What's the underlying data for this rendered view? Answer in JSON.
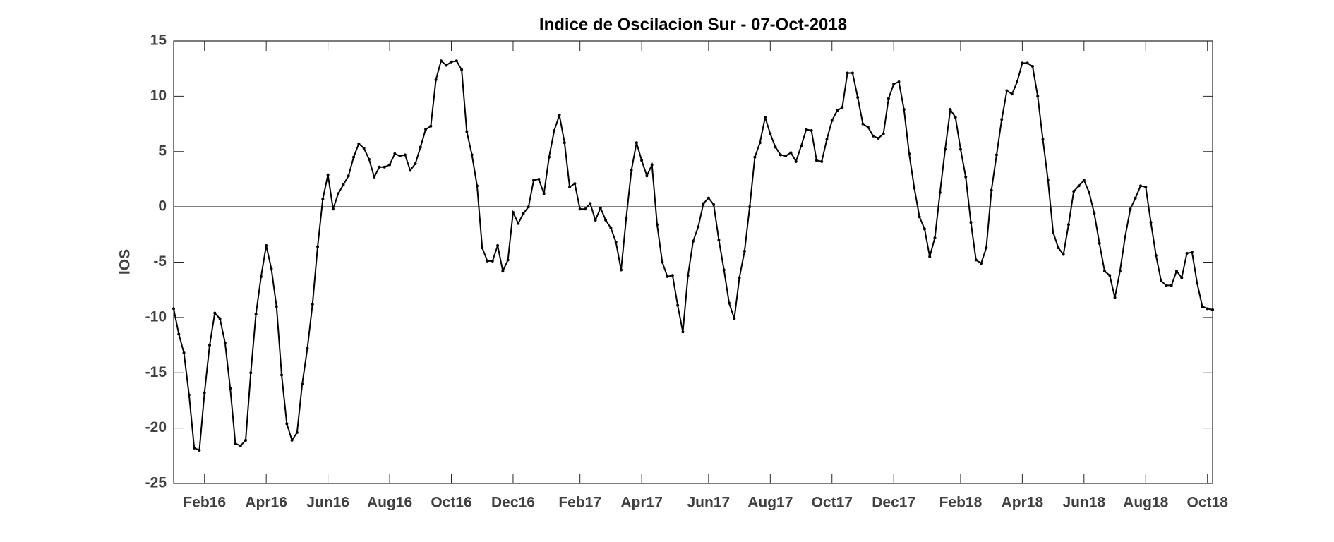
{
  "chart_data": {
    "type": "line",
    "title": "Indice de Oscilacion Sur - 07-Oct-2018",
    "ylabel": "IOS",
    "categories": [
      null,
      null,
      null,
      null,
      null,
      null,
      "Feb16",
      null,
      null,
      null,
      null,
      null,
      null,
      null,
      null,
      null,
      null,
      null,
      "Apr16",
      null,
      null,
      null,
      null,
      null,
      null,
      null,
      null,
      null,
      null,
      null,
      "Jun16",
      null,
      null,
      null,
      null,
      null,
      null,
      null,
      null,
      null,
      null,
      null,
      "Aug16",
      null,
      null,
      null,
      null,
      null,
      null,
      null,
      null,
      null,
      null,
      null,
      "Oct16",
      null,
      null,
      null,
      null,
      null,
      null,
      null,
      null,
      null,
      null,
      null,
      "Dec16",
      null,
      null,
      null,
      null,
      null,
      null,
      null,
      null,
      null,
      null,
      null,
      null,
      "Feb17",
      null,
      null,
      null,
      null,
      null,
      null,
      null,
      null,
      null,
      null,
      null,
      "Apr17",
      null,
      null,
      null,
      null,
      null,
      null,
      null,
      null,
      null,
      null,
      null,
      null,
      "Jun17",
      null,
      null,
      null,
      null,
      null,
      null,
      null,
      null,
      null,
      null,
      null,
      "Aug17",
      null,
      null,
      null,
      null,
      null,
      null,
      null,
      null,
      null,
      null,
      null,
      "Oct17",
      null,
      null,
      null,
      null,
      null,
      null,
      null,
      null,
      null,
      null,
      null,
      "Dec17",
      null,
      null,
      null,
      null,
      null,
      null,
      null,
      null,
      null,
      null,
      null,
      null,
      "Feb18",
      null,
      null,
      null,
      null,
      null,
      null,
      null,
      null,
      null,
      null,
      null,
      "Apr18",
      null,
      null,
      null,
      null,
      null,
      null,
      null,
      null,
      null,
      null,
      null,
      "Jun18",
      null,
      null,
      null,
      null,
      null,
      null,
      null,
      null,
      null,
      null,
      null,
      "Aug18",
      null,
      null,
      null,
      null,
      null,
      null,
      null,
      null,
      null,
      null,
      null,
      "Oct18",
      null
    ],
    "series": [
      {
        "name": "IOS",
        "color": "#000000",
        "values": [
          -9.2,
          -11.5,
          -13.2,
          -17,
          -21.8,
          -22,
          -16.8,
          -12.5,
          -9.6,
          -10.1,
          -12.3,
          -16.4,
          -21.4,
          -21.6,
          -21.1,
          -15,
          -9.7,
          -6.3,
          -3.5,
          -5.6,
          -9,
          -15.2,
          -19.6,
          -21.1,
          -20.4,
          -16,
          -12.8,
          -8.8,
          -3.6,
          0.7,
          2.9,
          -0.2,
          1.2,
          2,
          2.8,
          4.5,
          5.7,
          5.3,
          4.3,
          2.7,
          3.6,
          3.6,
          3.8,
          4.8,
          4.6,
          4.7,
          3.3,
          3.9,
          5.4,
          7,
          7.3,
          11.5,
          13.2,
          12.8,
          13.1,
          13.2,
          12.4,
          6.8,
          4.7,
          1.9,
          -3.7,
          -4.9,
          -4.9,
          -3.5,
          -5.8,
          -4.8,
          -0.5,
          -1.5,
          -0.6,
          0,
          2.4,
          2.5,
          1.2,
          4.5,
          6.9,
          8.3,
          5.8,
          1.8,
          2.1,
          -0.2,
          -0.2,
          0.3,
          -1.2,
          -0.1,
          -1.2,
          -1.9,
          -3.2,
          -5.7,
          -1,
          3.3,
          5.8,
          4.2,
          2.8,
          3.8,
          -1.6,
          -5,
          -6.3,
          -6.2,
          -8.9,
          -11.3,
          -6.2,
          -3.1,
          -1.8,
          0.3,
          0.8,
          0.2,
          -3,
          -5.7,
          -8.7,
          -10.1,
          -6.4,
          -4,
          0,
          4.5,
          5.8,
          8.1,
          6.6,
          5.4,
          4.7,
          4.6,
          4.9,
          4.1,
          5.5,
          7,
          6.9,
          4.2,
          4.1,
          6.1,
          7.8,
          8.7,
          9,
          12.1,
          12.1,
          9.9,
          7.5,
          7.2,
          6.4,
          6.2,
          6.6,
          9.8,
          11.1,
          11.3,
          8.8,
          4.8,
          1.7,
          -0.9,
          -2,
          -4.5,
          -2.8,
          1.3,
          5.2,
          8.8,
          8.1,
          5.2,
          2.7,
          -1.4,
          -4.8,
          -5.1,
          -3.7,
          1.5,
          4.7,
          7.9,
          10.5,
          10.2,
          11.3,
          13,
          13,
          12.7,
          10,
          6.1,
          2.4,
          -2.3,
          -3.7,
          -4.3,
          -1.6,
          1.4,
          1.9,
          2.4,
          1.3,
          -0.6,
          -3.3,
          -5.8,
          -6.2,
          -8.2,
          -5.8,
          -2.7,
          -0.2,
          0.8,
          1.9,
          1.8,
          -1.4,
          -4.4,
          -6.7,
          -7.1,
          -7.1,
          -5.8,
          -6.4,
          -4.2,
          -4.1,
          -6.9,
          -9,
          -9.2,
          -9.3
        ]
      }
    ],
    "ylim": [
      -25,
      15
    ],
    "yticks": [
      -25,
      -20,
      -15,
      -10,
      -5,
      0,
      5,
      10,
      15
    ],
    "zero_line": true
  }
}
